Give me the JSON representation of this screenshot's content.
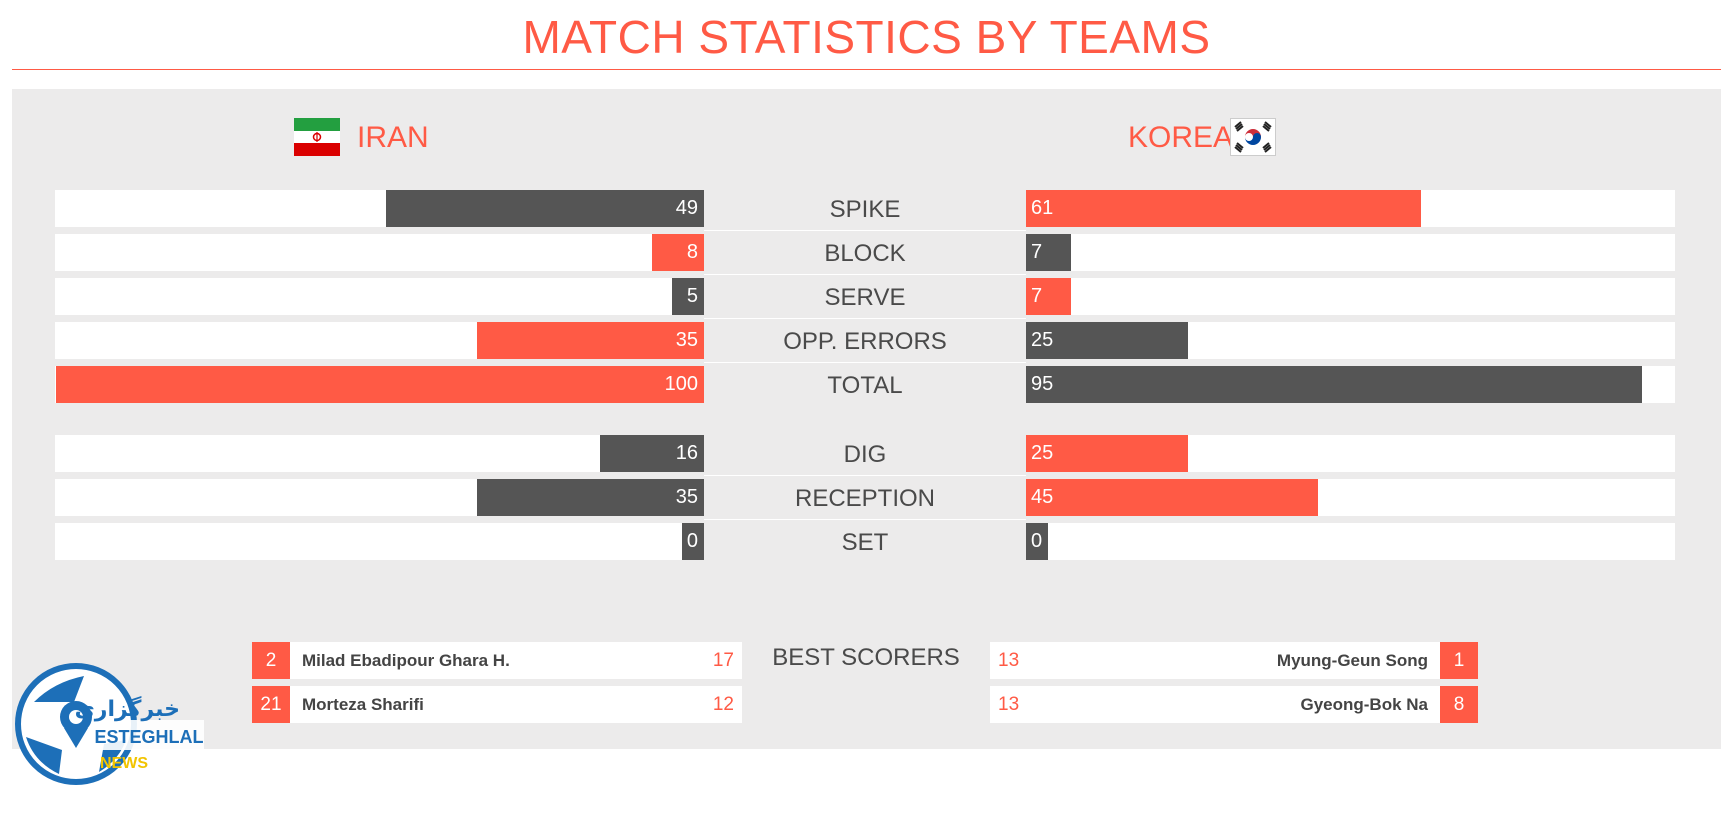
{
  "title": "MATCH STATISTICS BY TEAMS",
  "teams": {
    "left": {
      "name": "IRAN",
      "flag": "iran-flag"
    },
    "right": {
      "name": "KOREA",
      "flag": "korea-flag"
    }
  },
  "colors": {
    "accent": "#ff5a45",
    "dark": "#555555",
    "panel": "#ecebeb"
  },
  "chart_data": {
    "type": "bar",
    "title": "MATCH STATISTICS BY TEAMS",
    "orientation": "horizontal-diverging",
    "series": [
      {
        "name": "IRAN",
        "values": [
          49,
          8,
          5,
          35,
          100,
          16,
          35,
          0
        ]
      },
      {
        "name": "KOREA",
        "values": [
          61,
          7,
          7,
          25,
          95,
          25,
          45,
          0
        ]
      }
    ],
    "categories": [
      "SPIKE",
      "BLOCK",
      "SERVE",
      "OPP. ERRORS",
      "TOTAL",
      "DIG",
      "RECEPTION",
      "SET"
    ],
    "rows": [
      {
        "label": "SPIKE",
        "left": 49,
        "right": 61,
        "left_color": "dark",
        "right_color": "accent"
      },
      {
        "label": "BLOCK",
        "left": 8,
        "right": 7,
        "left_color": "accent",
        "right_color": "dark"
      },
      {
        "label": "SERVE",
        "left": 5,
        "right": 7,
        "left_color": "dark",
        "right_color": "accent"
      },
      {
        "label": "OPP. ERRORS",
        "left": 35,
        "right": 25,
        "left_color": "accent",
        "right_color": "dark"
      },
      {
        "label": "TOTAL",
        "left": 100,
        "right": 95,
        "left_color": "accent",
        "right_color": "dark"
      },
      {
        "label": "DIG",
        "left": 16,
        "right": 25,
        "left_color": "dark",
        "right_color": "accent"
      },
      {
        "label": "RECEPTION",
        "left": 35,
        "right": 45,
        "left_color": "dark",
        "right_color": "accent"
      },
      {
        "label": "SET",
        "left": 0,
        "right": 0,
        "left_color": "dark",
        "right_color": "dark"
      }
    ],
    "xlim": [
      0,
      100
    ]
  },
  "best_scorers": {
    "label": "BEST SCORERS",
    "left": [
      {
        "number": "2",
        "name": "Milad Ebadipour Ghara H.",
        "points": "17"
      },
      {
        "number": "21",
        "name": "Morteza Sharifi",
        "points": "12"
      }
    ],
    "right": [
      {
        "number": "1",
        "name": "Myung-Geun Song",
        "points": "13"
      },
      {
        "number": "8",
        "name": "Gyeong-Bok Na",
        "points": "13"
      }
    ]
  },
  "watermark": {
    "line1": "خبرگزاری",
    "line2": "ESTEGHLAL",
    "line3": "NEWS"
  }
}
